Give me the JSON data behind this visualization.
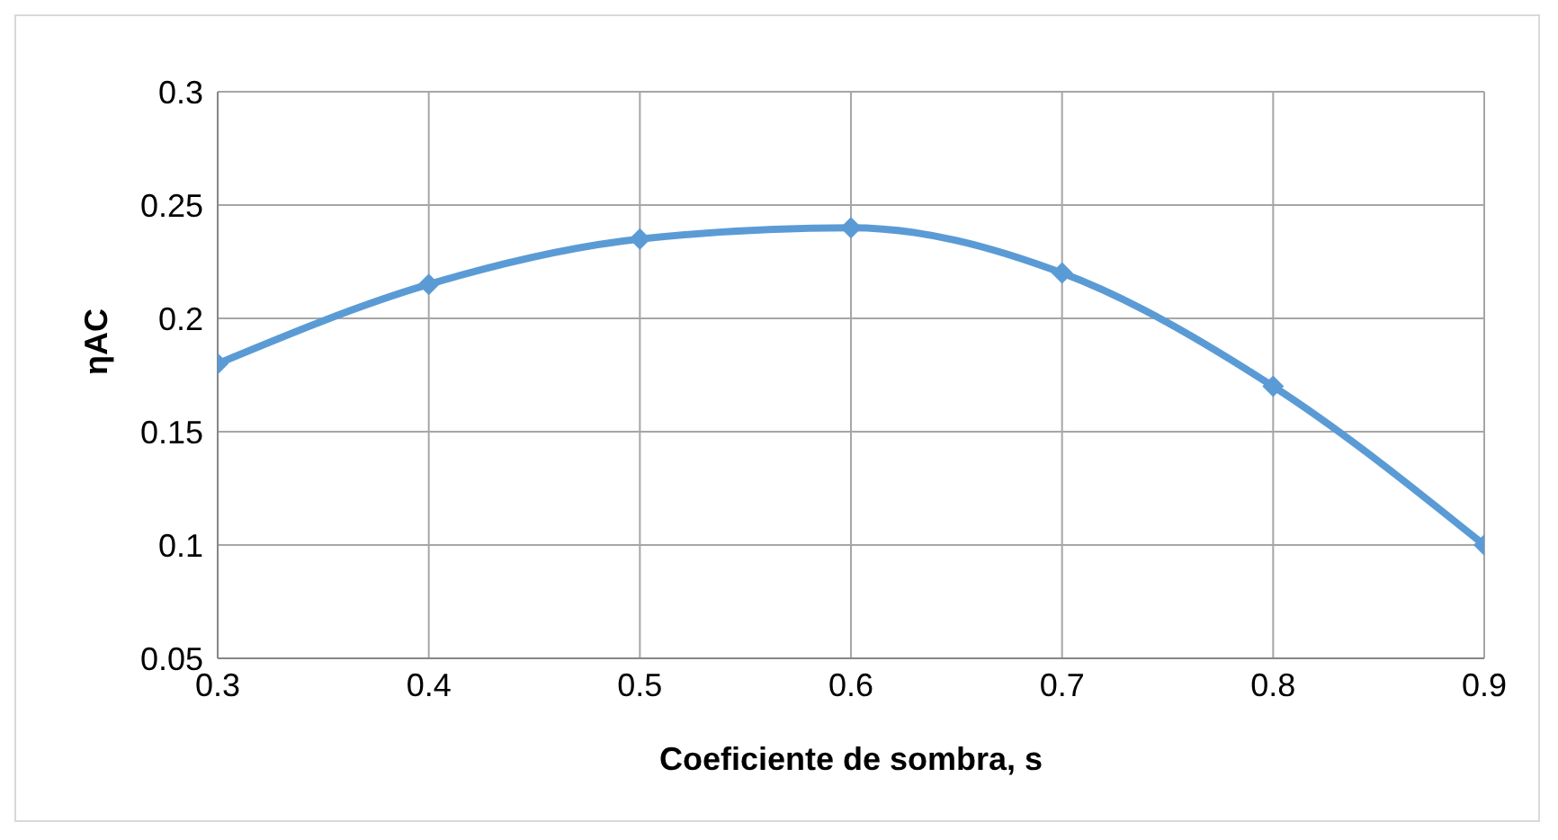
{
  "chart_data": {
    "type": "line",
    "xlabel": "Coeficiente de sombra, s",
    "ylabel": "ηAC",
    "x": [
      0.3,
      0.4,
      0.5,
      0.6,
      0.7,
      0.8,
      0.9
    ],
    "series": [
      {
        "color": "#5b9bd5",
        "values": [
          0.18,
          0.215,
          0.235,
          0.24,
          0.22,
          0.17,
          0.1
        ]
      }
    ],
    "xlim": [
      0.3,
      0.9
    ],
    "xticks": [
      0.3,
      0.4,
      0.5,
      0.6,
      0.7,
      0.8,
      0.9
    ],
    "ylim": [
      0.05,
      0.3
    ],
    "yticks": [
      0.05,
      0.1,
      0.15,
      0.2,
      0.25,
      0.3
    ],
    "grid": true,
    "legend": false,
    "marker": "diamond",
    "line_style": "solid"
  }
}
